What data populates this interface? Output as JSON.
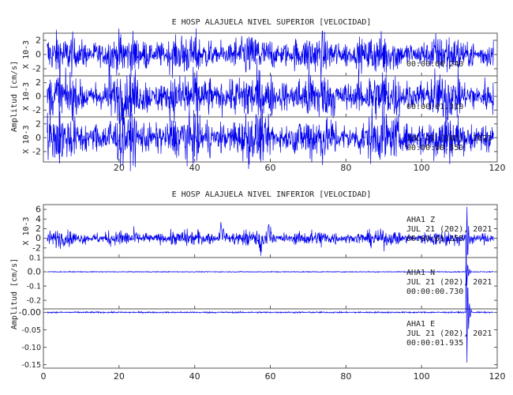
{
  "chart_data": [
    {
      "type": "line",
      "title": "E HOSP ALAJUELA NIVEL SUPERIOR [VELOCIDAD]",
      "ylabel": "Amplitud [cm/s]",
      "xlim": [
        0,
        120
      ],
      "xticks": [
        20,
        40,
        60,
        80,
        100,
        120
      ],
      "line_color": "#0000ee",
      "panels": [
        {
          "name": "",
          "scale_label": "X 10-3",
          "ylim": [
            -3,
            3
          ],
          "yticks": [
            -2,
            0,
            2
          ],
          "annotation": [
            "",
            "",
            "00:00:00.240"
          ],
          "trace": {
            "amp": 1.1,
            "pattern": "noise"
          }
        },
        {
          "name": "",
          "scale_label": "X 10-3",
          "ylim": [
            -3,
            3
          ],
          "yticks": [
            -2,
            0,
            2
          ],
          "annotation": [
            "",
            "",
            "00:00:01.310"
          ],
          "trace": {
            "amp": 1.4,
            "pattern": "noise"
          }
        },
        {
          "name": "",
          "scale_label": "X 10-3",
          "ylim": [
            -3.5,
            3
          ],
          "yticks": [
            -2,
            0,
            2
          ],
          "annotation": [
            "",
            "JUL 21 (202), 2021",
            "00:00:00.350"
          ],
          "trace": {
            "amp": 1.35,
            "pattern": "noise"
          }
        }
      ]
    },
    {
      "type": "line",
      "title": "E HOSP ALAJUELA NIVEL INFERIOR [VELOCIDAD]",
      "ylabel": "Amplitud [cm/s]",
      "xlim": [
        0,
        120
      ],
      "xticks": [
        0,
        20,
        40,
        60,
        80,
        100,
        120
      ],
      "line_color": "#0000ee",
      "panels": [
        {
          "name": "AHA1 Z",
          "scale_label": "X 10-3",
          "ylim": [
            -4,
            7
          ],
          "yticks": [
            -2,
            0,
            2,
            4,
            6
          ],
          "annotation": [
            "AHA1   Z",
            "JUL 21 (202), 2021",
            "00:00:01.255"
          ],
          "trace": {
            "amp": 0.65,
            "pattern": "events",
            "events": [
              [
                47,
                3.8
              ],
              [
                57.5,
                -3.0
              ],
              [
                59.5,
                3.1
              ]
            ],
            "spike": [
              112,
              6.5
            ]
          }
        },
        {
          "name": "AHA1 N",
          "scale_label": "",
          "ylim": [
            -0.26,
            0.1
          ],
          "yticks": [
            0.1,
            0.0,
            -0.1,
            -0.2
          ],
          "annotation": [
            "AHA1   N",
            "JUL 21 (202), 2021",
            "00:00:00.730"
          ],
          "trace": {
            "amp": 0.0015,
            "pattern": "flat",
            "spike": [
              112,
              -0.095
            ]
          }
        },
        {
          "name": "AHA1 E",
          "scale_label": "",
          "ylim": [
            -0.16,
            0.01
          ],
          "yticks": [
            -0.0,
            -0.05,
            -0.1,
            -0.15
          ],
          "annotation": [
            "AHA1   E",
            "JUL 21 (202), 2021",
            "00:00:01.935"
          ],
          "trace": {
            "amp": 0.001,
            "pattern": "flat",
            "spike": [
              112,
              -0.145
            ]
          }
        }
      ]
    }
  ]
}
